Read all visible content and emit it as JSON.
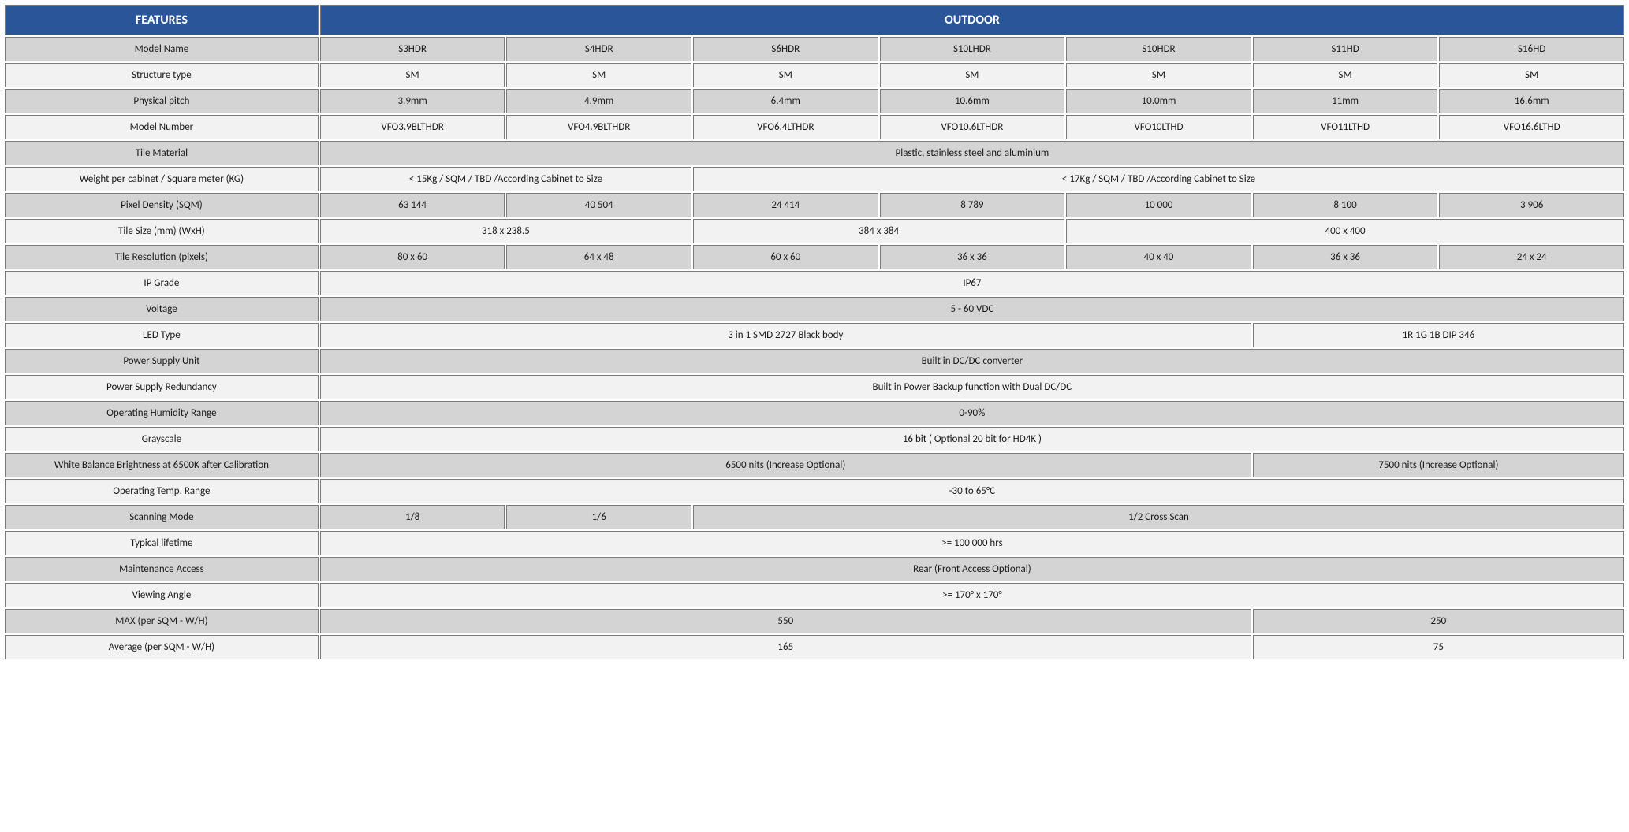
{
  "header": {
    "features": "FEATURES",
    "outdoor": "OUTDOOR"
  },
  "colors": {
    "header_bg": "#2a5599",
    "header_fg": "#ffffff",
    "row_light": "#f2f2f2",
    "row_dark": "#d4d4d4",
    "border": "#7a7a7a"
  },
  "rows": [
    {
      "alt": true,
      "label": "Model Name",
      "cells": [
        {
          "v": "S3HDR"
        },
        {
          "v": "S4HDR"
        },
        {
          "v": "S6HDR"
        },
        {
          "v": "S10LHDR"
        },
        {
          "v": "S10HDR"
        },
        {
          "v": "S11HD"
        },
        {
          "v": "S16HD"
        }
      ]
    },
    {
      "alt": false,
      "label": "Structure type",
      "cells": [
        {
          "v": "SM"
        },
        {
          "v": "SM"
        },
        {
          "v": "SM"
        },
        {
          "v": "SM"
        },
        {
          "v": "SM"
        },
        {
          "v": "SM"
        },
        {
          "v": "SM"
        }
      ]
    },
    {
      "alt": true,
      "label": "Physical pitch",
      "cells": [
        {
          "v": "3.9mm"
        },
        {
          "v": "4.9mm"
        },
        {
          "v": "6.4mm"
        },
        {
          "v": "10.6mm"
        },
        {
          "v": "10.0mm"
        },
        {
          "v": "11mm"
        },
        {
          "v": "16.6mm"
        }
      ]
    },
    {
      "alt": false,
      "label": "Model Number",
      "cells": [
        {
          "v": "VFO3.9BLTHDR"
        },
        {
          "v": "VFO4.9BLTHDR"
        },
        {
          "v": "VFO6.4LTHDR"
        },
        {
          "v": "VFO10.6LTHDR"
        },
        {
          "v": "VFO10LTHD"
        },
        {
          "v": "VFO11LTHD"
        },
        {
          "v": "VFO16.6LTHD"
        }
      ]
    },
    {
      "alt": true,
      "label": "Tile Material",
      "cells": [
        {
          "v": "Plastic, stainless steel and aluminium",
          "span": 7
        }
      ]
    },
    {
      "alt": false,
      "label": "Weight per cabinet / Square meter (KG)",
      "cells": [
        {
          "v": "< 15Kg / SQM / TBD /According Cabinet to Size",
          "span": 2
        },
        {
          "v": "< 17Kg / SQM / TBD /According Cabinet to Size",
          "span": 5
        }
      ]
    },
    {
      "alt": true,
      "label": "Pixel Density  (SQM)",
      "cells": [
        {
          "v": "63 144"
        },
        {
          "v": "40 504"
        },
        {
          "v": "24 414"
        },
        {
          "v": "8 789"
        },
        {
          "v": "10 000"
        },
        {
          "v": "8 100"
        },
        {
          "v": "3 906"
        }
      ]
    },
    {
      "alt": false,
      "label": "Tile Size (mm) (WxH)",
      "cells": [
        {
          "v": "318 x 238.5",
          "span": 2
        },
        {
          "v": "384 x 384",
          "span": 2
        },
        {
          "v": "400 x 400",
          "span": 3
        }
      ]
    },
    {
      "alt": true,
      "label": "Tile Resolution (pixels)",
      "cells": [
        {
          "v": "80 x 60"
        },
        {
          "v": "64 x 48"
        },
        {
          "v": "60 x 60"
        },
        {
          "v": "36 x 36"
        },
        {
          "v": "40 x 40"
        },
        {
          "v": "36 x 36"
        },
        {
          "v": "24 x 24"
        }
      ]
    },
    {
      "alt": false,
      "label": "IP Grade",
      "cells": [
        {
          "v": "IP67",
          "span": 7
        }
      ]
    },
    {
      "alt": true,
      "label": "Voltage",
      "cells": [
        {
          "v": "5 - 60 VDC",
          "span": 7
        }
      ]
    },
    {
      "alt": false,
      "label": "LED Type",
      "cells": [
        {
          "v": "3 in 1 SMD 2727 Black body",
          "span": 5
        },
        {
          "v": "1R 1G 1B DIP 346",
          "span": 2
        }
      ]
    },
    {
      "alt": true,
      "label": "Power Supply Unit",
      "cells": [
        {
          "v": "Built in DC/DC converter",
          "span": 7
        }
      ]
    },
    {
      "alt": false,
      "label": "Power Supply Redundancy",
      "cells": [
        {
          "v": "Built in Power Backup function with Dual DC/DC",
          "span": 7
        }
      ]
    },
    {
      "alt": true,
      "label": "Operating Humidity Range",
      "cells": [
        {
          "v": "0-90%",
          "span": 7
        }
      ]
    },
    {
      "alt": false,
      "label": "Grayscale",
      "cells": [
        {
          "v": "16 bit ( Optional 20 bit for HD4K )",
          "span": 7
        }
      ]
    },
    {
      "alt": true,
      "label": "White Balance Brightness  at 6500K after Calibration",
      "cells": [
        {
          "v": "6500 nits (Increase Optional)",
          "span": 5
        },
        {
          "v": "7500 nits  (Increase Optional)",
          "span": 2
        }
      ]
    },
    {
      "alt": false,
      "label": "Operating Temp. Range",
      "cells": [
        {
          "v": "-30 to 65°C",
          "span": 7
        }
      ]
    },
    {
      "alt": true,
      "label": "Scanning Mode",
      "cells": [
        {
          "v": "1/8"
        },
        {
          "v": "1/6"
        },
        {
          "v": "1/2 Cross Scan",
          "span": 5
        }
      ]
    },
    {
      "alt": false,
      "label": "Typical lifetime",
      "cells": [
        {
          "v": ">= 100 000 hrs",
          "span": 7
        }
      ]
    },
    {
      "alt": true,
      "label": "Maintenance Access",
      "cells": [
        {
          "v": "Rear (Front Access Optional)",
          "span": 7
        }
      ]
    },
    {
      "alt": false,
      "label": "Viewing Angle",
      "cells": [
        {
          "v": ">= 170° x 170°",
          "span": 7
        }
      ]
    },
    {
      "alt": true,
      "label": "MAX (per SQM - W/H)",
      "cells": [
        {
          "v": "550",
          "span": 5
        },
        {
          "v": "250",
          "span": 2
        }
      ]
    },
    {
      "alt": false,
      "label": "Average (per SQM - W/H)",
      "cells": [
        {
          "v": "165",
          "span": 5
        },
        {
          "v": "75",
          "span": 2
        }
      ]
    }
  ]
}
